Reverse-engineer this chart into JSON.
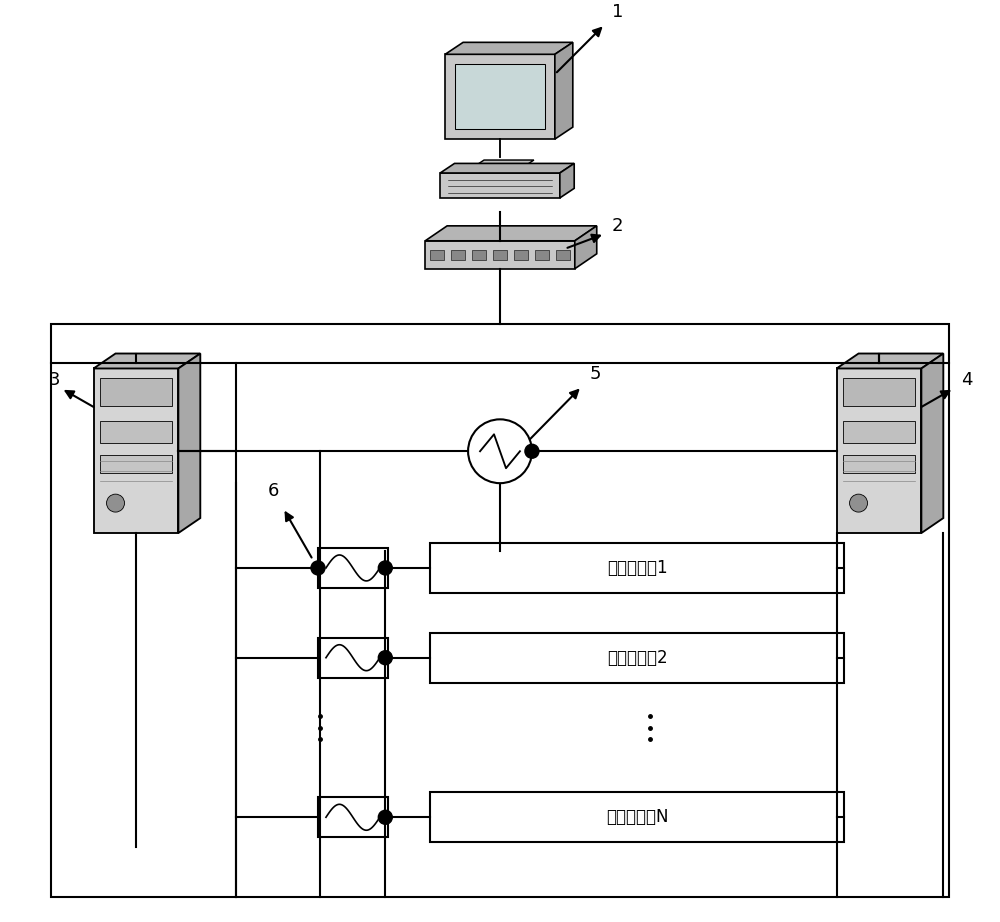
{
  "bg_color": "#ffffff",
  "line_color": "#000000",
  "label_1": "1",
  "label_2": "2",
  "label_3": "3",
  "label_4": "4",
  "label_5": "5",
  "label_6": "6",
  "twt_labels": [
    "回旋行波剶1",
    "回旋行波剶2",
    "回旋行波管N"
  ],
  "figsize": [
    10.0,
    9.22
  ],
  "dpi": 100
}
